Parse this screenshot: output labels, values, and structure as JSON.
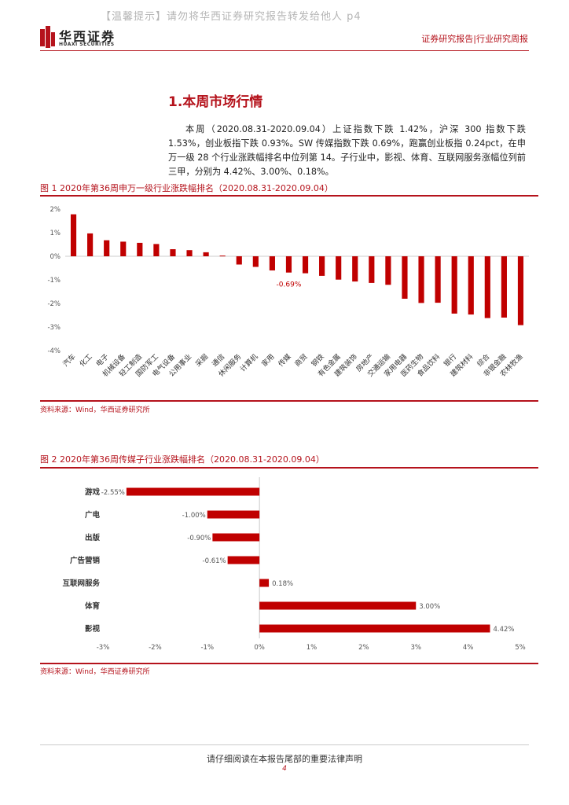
{
  "notice": "【温馨提示】请勿将华西证券研究报告转发给他人 p4",
  "brand": {
    "name_cn": "华西证券",
    "name_en": "HUAXI SECURITIES",
    "logo_color": "#b5131c"
  },
  "header_right": "证券研究报告|行业研究周报",
  "section_title": "1.本周市场行情",
  "paragraph": "本周（2020.08.31-2020.09.04）上证指数下跌 1.42%，沪深 300 指数下跌 1.53%，创业板指下跌 0.93%。SW 传媒指数下跌 0.69%，跑赢创业板指 0.24pct，在申万一级 28 个行业涨跌幅排名中位列第 14。子行业中，影视、体育、互联网服务涨幅位列前三甲，分别为 4.42%、3.00%、0.18%。",
  "figure1": {
    "title": "图 1 2020年第36周申万一级行业涨跌幅排名（2020.08.31-2020.09.04）",
    "source": "资料来源：Wind，华西证券研究所"
  },
  "figure2": {
    "title": "图 2 2020年第36周传媒子行业涨跌幅排名（2020.08.31-2020.09.04）",
    "source": "资料来源：Wind，华西证券研究所"
  },
  "chart_data": [
    {
      "type": "bar",
      "categories": [
        "汽车",
        "化工",
        "电子",
        "机械设备",
        "轻工制造",
        "国防军工",
        "电气设备",
        "公用事业",
        "采掘",
        "通信",
        "休闲服务",
        "计算机",
        "家用",
        "传媒",
        "商贸",
        "钢铁",
        "有色金属",
        "建筑装饰",
        "房地产",
        "交通运输",
        "家用电器",
        "医药生物",
        "食品饮料",
        "银行",
        "建筑材料",
        "综合",
        "非银金融",
        "农林牧渔"
      ],
      "values": [
        1.78,
        0.97,
        0.68,
        0.62,
        0.57,
        0.52,
        0.3,
        0.26,
        0.17,
        0.03,
        -0.35,
        -0.45,
        -0.6,
        -0.69,
        -0.72,
        -0.83,
        -0.99,
        -1.07,
        -1.13,
        -1.21,
        -1.8,
        -1.98,
        -1.97,
        -2.43,
        -2.47,
        -2.62,
        -2.6,
        -2.92
      ],
      "data_labels": [
        {
          "category": "传媒",
          "label": "-0.69%"
        }
      ],
      "ylim": [
        -4,
        2
      ],
      "y_ticks": [
        "2%",
        "1%",
        "0%",
        "-1%",
        "-2%",
        "-3%",
        "-4%"
      ],
      "color": "#c00000"
    },
    {
      "type": "bar",
      "orientation": "horizontal",
      "categories": [
        "游戏",
        "广电",
        "出版",
        "广告营销",
        "互联网服务",
        "体育",
        "影视"
      ],
      "values": [
        -2.55,
        -1.0,
        -0.9,
        -0.61,
        0.18,
        3.0,
        4.42
      ],
      "data_labels": [
        "-2.55%",
        "-1.00%",
        "-0.90%",
        "-0.61%",
        "0.18%",
        "3.00%",
        "4.42%"
      ],
      "xlim": [
        -3,
        5
      ],
      "x_ticks": [
        "-3%",
        "-2%",
        "-1%",
        "0%",
        "1%",
        "2%",
        "3%",
        "4%",
        "5%"
      ],
      "color": "#c00000"
    }
  ],
  "footer_text": "请仔细阅读在本报告尾部的重要法律声明",
  "page_number": "4"
}
